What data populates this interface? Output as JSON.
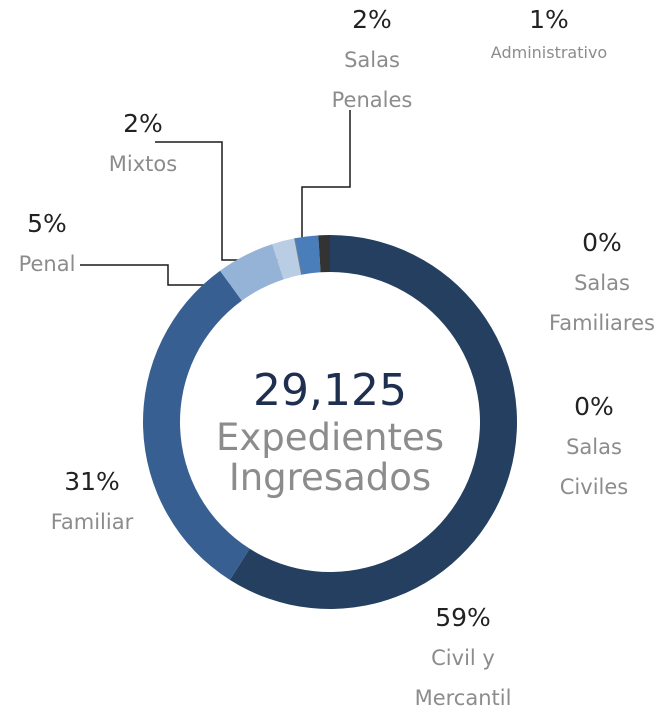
{
  "chart_data": {
    "type": "donut",
    "center_label": "29,125",
    "center_text": "Expedientes Ingresados",
    "categories": [
      "Civil y Mercantil",
      "Familiar",
      "Penal",
      "Mixtos",
      "Salas Civiles",
      "Salas Familiares",
      "Salas Penales",
      "Administrativo"
    ],
    "values": [
      59,
      31,
      5,
      2,
      0,
      0,
      2,
      1
    ],
    "value_labels": [
      "59%",
      "31%",
      "5%",
      "2%",
      "0%",
      "0%",
      "2%",
      "1%"
    ],
    "colors": [
      "#243f60",
      "#375f92",
      "#95b3d7",
      "#b9cde5",
      "#a6a6a6",
      "#7f7f7f",
      "#4a7ebb",
      "#333333"
    ]
  }
}
